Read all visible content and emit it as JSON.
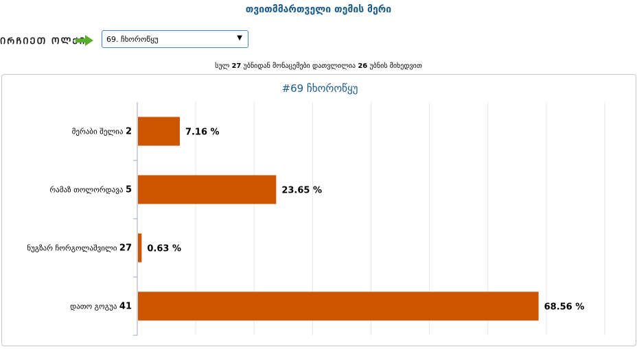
{
  "header": {
    "title": "თვითმმართველი თემის მერი"
  },
  "filter": {
    "label": "ᲘᲠᲩᲘᲔᲗ ᲝᲚᲥᲘ",
    "arrow_icon": "arrow-right-icon",
    "selected": "69. ჩხოროწყუ"
  },
  "summary": {
    "prefix": "სულ",
    "total": "27",
    "middle": "უბნიდან მონაცემები დათვლილია",
    "counted": "26",
    "suffix": "უბნის მიხედვით"
  },
  "colors": {
    "bar": "#cc5500",
    "title": "#1a5a8a",
    "arrow": "#5aac2c"
  },
  "chart_data": {
    "type": "bar",
    "orientation": "horizontal",
    "title": "#69 ჩხოროწყუ",
    "categories": [
      "მერაბი შელია",
      "რამაზ თოლორდავა",
      "ნუგზარ ჩორგოლაშვილი",
      "დათო გოგუა"
    ],
    "category_numbers": [
      "2",
      "5",
      "27",
      "41"
    ],
    "values": [
      7.16,
      23.65,
      0.63,
      68.56
    ],
    "value_labels": [
      "7.16 %",
      "23.65 %",
      "0.63 %",
      "68.56 %"
    ],
    "xlim": [
      0,
      80
    ],
    "grid": true,
    "legend": "none"
  }
}
